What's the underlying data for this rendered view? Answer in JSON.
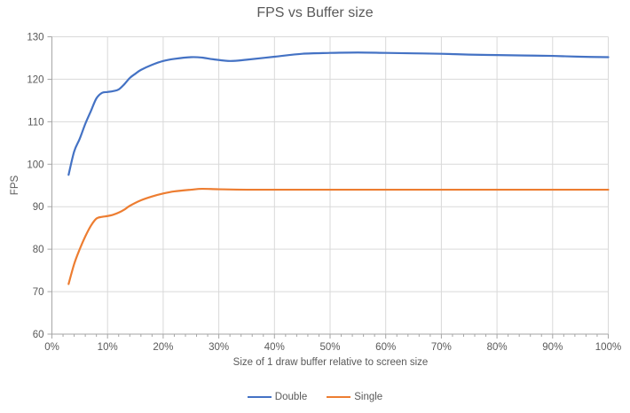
{
  "chart_data": {
    "type": "line",
    "title": "FPS vs Buffer size",
    "xlabel": "Size of 1 draw buffer relative to screen size",
    "ylabel": "FPS",
    "xlim": [
      0,
      100
    ],
    "ylim": [
      60,
      130
    ],
    "x_tick_values": [
      0,
      10,
      20,
      30,
      40,
      50,
      60,
      70,
      80,
      90,
      100
    ],
    "x_tick_labels": [
      "0%",
      "10%",
      "20%",
      "30%",
      "40%",
      "50%",
      "60%",
      "70%",
      "80%",
      "90%",
      "100%"
    ],
    "x_minor_tick_step": 2,
    "y_ticks": [
      60,
      70,
      80,
      90,
      100,
      110,
      120,
      130
    ],
    "grid": true,
    "smooth": true,
    "legend_position": "bottom-center",
    "colors": {
      "grid": "#D9D9D9",
      "axis": "#A6A6A6",
      "text": "#595959",
      "title": "#595959"
    },
    "series": [
      {
        "name": "Double",
        "color": "#4472C4",
        "points": [
          [
            3,
            97.5
          ],
          [
            4,
            103
          ],
          [
            5,
            106
          ],
          [
            6,
            109.5
          ],
          [
            7,
            112.5
          ],
          [
            8,
            115.5
          ],
          [
            9,
            116.8
          ],
          [
            10,
            117
          ],
          [
            11,
            117.2
          ],
          [
            12,
            117.6
          ],
          [
            13,
            118.8
          ],
          [
            14,
            120.3
          ],
          [
            15,
            121.3
          ],
          [
            16,
            122.2
          ],
          [
            18,
            123.4
          ],
          [
            20,
            124.3
          ],
          [
            22,
            124.8
          ],
          [
            25,
            125.2
          ],
          [
            27,
            125.1
          ],
          [
            29,
            124.7
          ],
          [
            32,
            124.3
          ],
          [
            35,
            124.6
          ],
          [
            40,
            125.3
          ],
          [
            45,
            126.0
          ],
          [
            50,
            126.2
          ],
          [
            55,
            126.3
          ],
          [
            60,
            126.2
          ],
          [
            65,
            126.1
          ],
          [
            70,
            126.0
          ],
          [
            75,
            125.8
          ],
          [
            80,
            125.7
          ],
          [
            85,
            125.6
          ],
          [
            90,
            125.5
          ],
          [
            95,
            125.3
          ],
          [
            100,
            125.2
          ]
        ]
      },
      {
        "name": "Single",
        "color": "#ED7D31",
        "points": [
          [
            3,
            71.8
          ],
          [
            4,
            76.5
          ],
          [
            5,
            80
          ],
          [
            6,
            83
          ],
          [
            7,
            85.5
          ],
          [
            8,
            87.2
          ],
          [
            9,
            87.6
          ],
          [
            10,
            87.8
          ],
          [
            11,
            88.1
          ],
          [
            12,
            88.6
          ],
          [
            13,
            89.3
          ],
          [
            14,
            90.2
          ],
          [
            16,
            91.5
          ],
          [
            18,
            92.4
          ],
          [
            20,
            93.1
          ],
          [
            22,
            93.6
          ],
          [
            25,
            94.0
          ],
          [
            27,
            94.2
          ],
          [
            30,
            94.1
          ],
          [
            35,
            94.0
          ],
          [
            40,
            94.0
          ],
          [
            45,
            94.0
          ],
          [
            50,
            94.0
          ],
          [
            55,
            94.0
          ],
          [
            60,
            94.0
          ],
          [
            65,
            94.0
          ],
          [
            70,
            94.0
          ],
          [
            75,
            94.0
          ],
          [
            80,
            94.0
          ],
          [
            85,
            94.0
          ],
          [
            90,
            94.0
          ],
          [
            95,
            94.0
          ],
          [
            100,
            94.0
          ]
        ]
      }
    ]
  }
}
